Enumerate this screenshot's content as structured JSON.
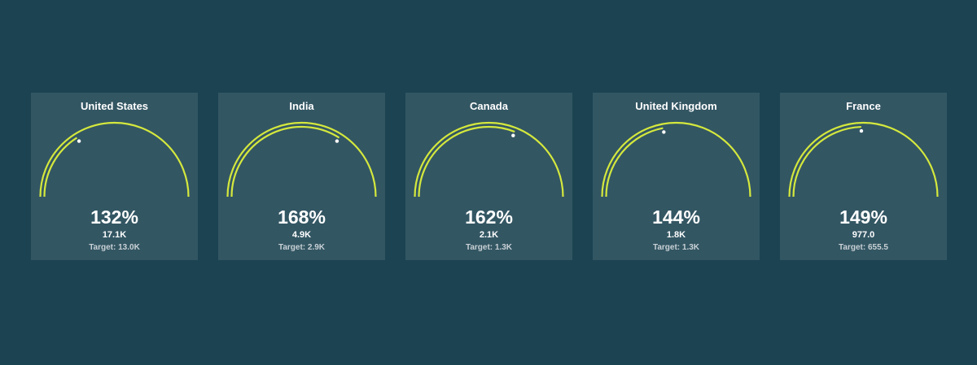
{
  "chart_data": {
    "type": "gauge",
    "colors": {
      "background": "#1b4351",
      "card": "#335663",
      "arc": "#d4e83d",
      "marker": "#ffffff"
    },
    "gauges": [
      {
        "title": "United States",
        "percent_label": "132%",
        "percent": 132,
        "actual_label": "17.1K",
        "target_label": "Target: 13.0K"
      },
      {
        "title": "India",
        "percent_label": "168%",
        "percent": 168,
        "actual_label": "4.9K",
        "target_label": "Target: 2.9K"
      },
      {
        "title": "Canada",
        "percent_label": "162%",
        "percent": 162,
        "actual_label": "2.1K",
        "target_label": "Target: 1.3K"
      },
      {
        "title": "United Kingdom",
        "percent_label": "144%",
        "percent": 144,
        "actual_label": "1.8K",
        "target_label": "Target: 1.3K"
      },
      {
        "title": "France",
        "percent_label": "149%",
        "percent": 149,
        "actual_label": "977.0",
        "target_label": "Target: 655.5"
      }
    ]
  }
}
